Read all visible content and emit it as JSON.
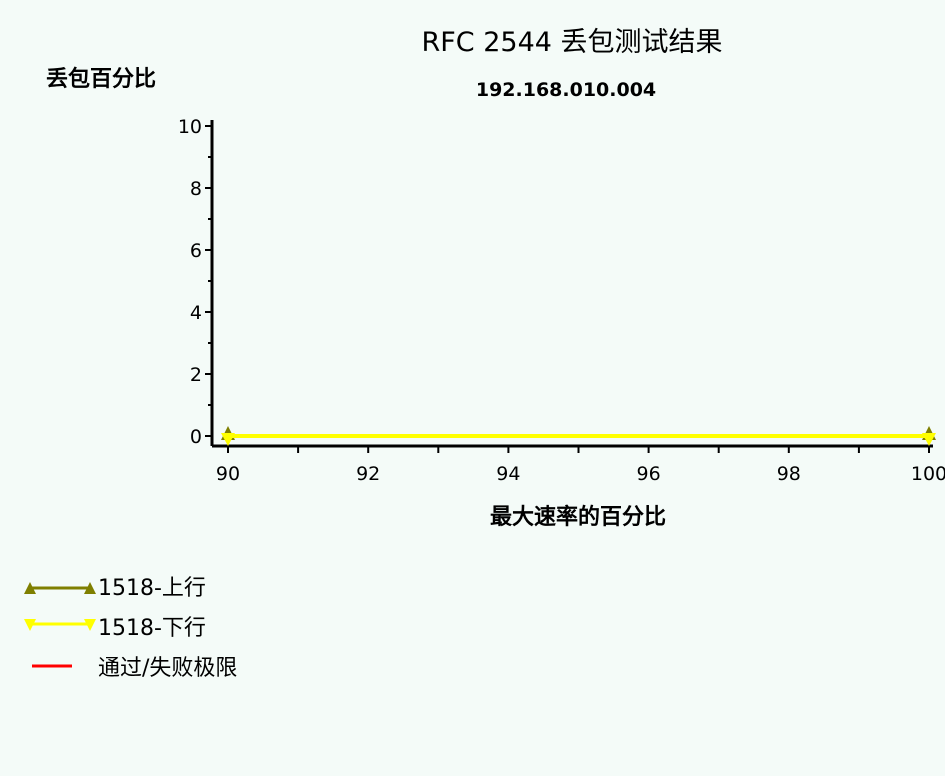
{
  "chart_data": {
    "type": "line",
    "title": "RFC 2544 丢包测试结果",
    "subtitle": "192.168.010.004",
    "ylabel": "丢包百分比",
    "xlabel": "最大速率的百分比",
    "xlim": [
      90,
      100
    ],
    "ylim": [
      0,
      10
    ],
    "x_ticks": [
      90,
      92,
      94,
      96,
      98,
      100
    ],
    "y_ticks": [
      0,
      2,
      4,
      6,
      8,
      10
    ],
    "series": [
      {
        "name": "1518-上行",
        "color": "#7f7f00",
        "marker": "triangle-up",
        "x": [
          90,
          100
        ],
        "y": [
          0,
          0
        ]
      },
      {
        "name": "1518-下行",
        "color": "#ffff00",
        "marker": "triangle-down",
        "x": [
          90,
          100
        ],
        "y": [
          0,
          0
        ]
      }
    ],
    "thresholds": [
      {
        "name": "通过/失败极限",
        "color": "#ff0000"
      }
    ]
  }
}
